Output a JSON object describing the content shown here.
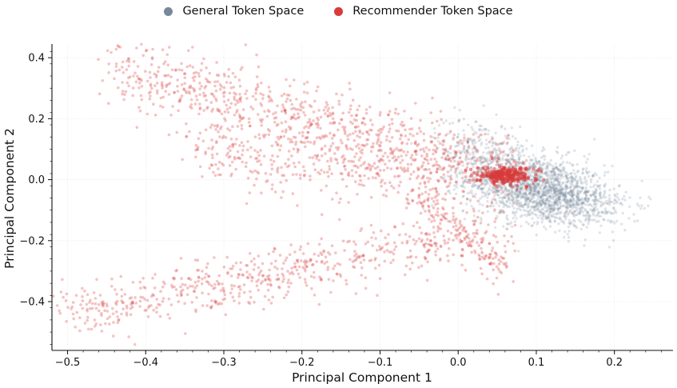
{
  "chart_data": {
    "type": "scatter",
    "title": "",
    "xlabel": "Principal Component 1",
    "ylabel": "Principal Component 2",
    "xlim": [
      -0.52,
      0.275
    ],
    "ylim": [
      -0.56,
      0.445
    ],
    "xticks": [
      -0.5,
      -0.4,
      -0.3,
      -0.2,
      -0.1,
      0.0,
      0.1,
      0.2
    ],
    "xtick_labels": [
      "−0.5",
      "−0.4",
      "−0.3",
      "−0.2",
      "−0.1",
      "0.0",
      "0.1",
      "0.2"
    ],
    "yticks": [
      0.4,
      0.2,
      0.0,
      -0.2,
      -0.4
    ],
    "ytick_labels": [
      "0.4",
      "0.2",
      "0.0",
      "−0.2",
      "−0.4"
    ],
    "grid": true,
    "legend_position": "top-center",
    "series": [
      {
        "name": "General Token Space",
        "color": "#778899",
        "description_of_cloud": "dense cluster centered near (0.10, -0.03)",
        "clusters": [
          {
            "cx": 0.1,
            "cy": -0.03,
            "sx": 0.045,
            "sy": 0.055,
            "n": 1600
          },
          {
            "cx": 0.03,
            "cy": 0.1,
            "sx": 0.03,
            "sy": 0.05,
            "n": 250
          },
          {
            "cx": 0.16,
            "cy": -0.08,
            "sx": 0.03,
            "sy": 0.04,
            "n": 250
          }
        ]
      },
      {
        "name": "Recommender Token Space",
        "color": "#d93a3a",
        "bands": [
          {
            "x0": -0.44,
            "y0": 0.36,
            "x1": 0.08,
            "y1": 0.01,
            "spread": 0.06,
            "n": 900
          },
          {
            "x0": -0.34,
            "y0": 0.1,
            "x1": 0.0,
            "y1": 0.0,
            "spread": 0.05,
            "n": 350
          },
          {
            "x0": -0.5,
            "y0": -0.44,
            "x1": 0.06,
            "y1": -0.16,
            "spread": 0.045,
            "n": 650
          },
          {
            "x0": -0.05,
            "y0": -0.05,
            "x1": 0.06,
            "y1": -0.3,
            "spread": 0.03,
            "n": 150
          }
        ],
        "dense_core": {
          "cx": 0.06,
          "cy": 0.015,
          "sx": 0.018,
          "sy": 0.012,
          "n": 260
        }
      }
    ]
  }
}
